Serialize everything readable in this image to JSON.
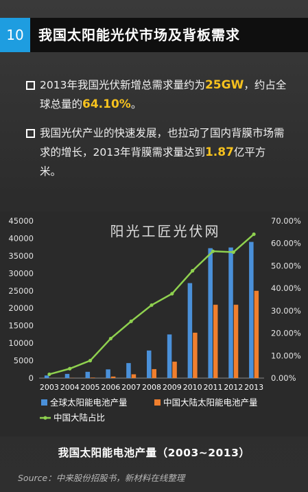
{
  "header": {
    "number": "10",
    "title": "我国太阳能光伏市场及背板需求"
  },
  "bullets": [
    {
      "pre": "2013年我国光伏新增总需求量约为",
      "hl1": "25GW",
      "mid": "，约占全球总量的",
      "hl2": "64.10%",
      "post": "。"
    },
    {
      "pre": "我国光伏产业的快速发展，也拉动了国内背膜市场需求的增长，2013年背膜需求量达到",
      "hl1": "1.87",
      "mid": "亿平方米。",
      "hl2": "",
      "post": ""
    }
  ],
  "watermark": "阳光工匠光伏网",
  "caption": "我国太阳能电池产量（2003~2013）",
  "source": "Source：中来股份招股书，新材料在线整理",
  "colors": {
    "global": "#4a90d9",
    "china": "#f07f2e",
    "ratio": "#8fd14f",
    "highlight": "#f7c21e",
    "num_box": "#1e9de0"
  },
  "chart_data": {
    "type": "bar",
    "categories": [
      "2003",
      "2004",
      "2005",
      "2006",
      "2007",
      "2008",
      "2009",
      "2010",
      "2011",
      "2012",
      "2013"
    ],
    "y_left_ticks": [
      "0",
      "5000",
      "10000",
      "15000",
      "20000",
      "25000",
      "30000",
      "35000",
      "40000",
      "45000"
    ],
    "y_right_ticks": [
      "0.00%",
      "10.00%",
      "20.00%",
      "30.00%",
      "40.00%",
      "50.00%",
      "60.00%",
      "70.00%"
    ],
    "ylim_left": [
      0,
      45000
    ],
    "ylim_right": [
      0,
      70
    ],
    "series": [
      {
        "name": "全球太阳能电池产量",
        "kind": "bar",
        "values": [
          750,
          1200,
          1800,
          2500,
          4300,
          7900,
          12500,
          27200,
          37200,
          37400,
          39000
        ]
      },
      {
        "name": "中国大陆太阳能电池产量",
        "kind": "bar",
        "values": [
          13,
          50,
          140,
          440,
          1090,
          2570,
          4700,
          13000,
          21000,
          21000,
          25000
        ]
      },
      {
        "name": "中国大陆占比",
        "kind": "line",
        "axis": "right",
        "values": [
          1.7,
          4.2,
          7.8,
          17.6,
          25.3,
          32.5,
          37.6,
          47.8,
          56.5,
          56.1,
          64.1
        ]
      }
    ],
    "legend": "bottom"
  }
}
